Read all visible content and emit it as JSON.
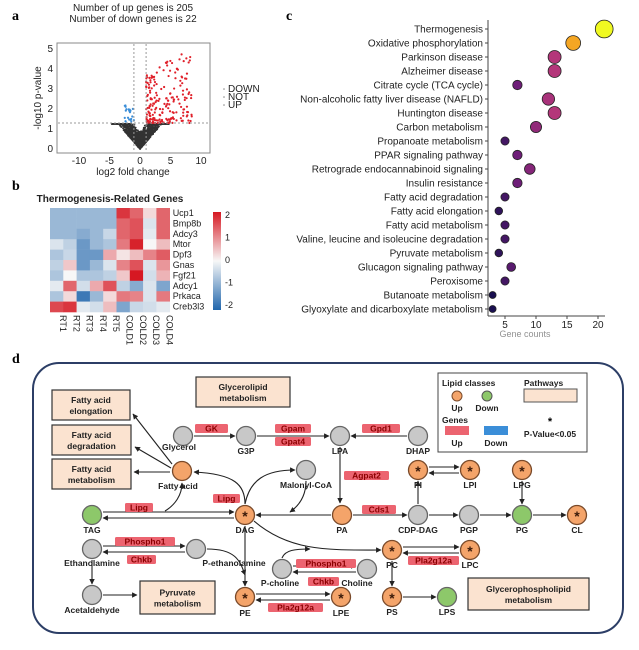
{
  "panel_labels": {
    "a": "a",
    "b": "b",
    "c": "c",
    "d": "d"
  },
  "colors": {
    "up_red": "#e0202a",
    "down_blue": "#3b8ed8",
    "not_gray": "#333333",
    "gene_box": "#ec6470",
    "pathway_box": "#fbe3d0",
    "node_up": "#f4a46a",
    "node_down": "#8dc86a",
    "node_none": "#c8c8c8",
    "frame": "#2c3e66"
  },
  "chart_data": [
    {
      "type": "scatter",
      "name": "volcano",
      "title_lines": [
        "Number of up genes is 205",
        "Number of down genes is 22"
      ],
      "xlabel": "log2 fold change",
      "ylabel": "-log10 p-value",
      "xticks": [
        -10,
        -5,
        0,
        5,
        10
      ],
      "yticks": [
        0,
        1,
        2,
        3,
        4,
        5
      ],
      "xlim": [
        -13,
        12
      ],
      "ylim": [
        -0.1,
        5.3
      ],
      "up_count": 205,
      "down_count": 22,
      "fc_threshold": 1,
      "p_threshold": 1.3,
      "legend": [
        "DOWN",
        "NOT",
        "UP"
      ],
      "legend_position": "right"
    },
    {
      "type": "heatmap",
      "name": "thermogenesis-heatmap",
      "title": "Thermogenesis-Related Genes",
      "rows": [
        "Ucp1",
        "Bmp8b",
        "Adcy3",
        "Mtor",
        "Dpf3",
        "Gnas",
        "Fgf21",
        "Adcy1",
        "Prkaca",
        "Creb3l3"
      ],
      "columns": [
        "RT1",
        "RT2",
        "RT3",
        "RT4",
        "RT5",
        "COLD1",
        "COLD2",
        "COLD3",
        "COLD4"
      ],
      "values": [
        [
          -1,
          -1,
          -1,
          -1,
          -1,
          2,
          1.5,
          0.3,
          1.5
        ],
        [
          -1,
          -1,
          -1,
          -1,
          -1,
          1.5,
          1.7,
          -0.3,
          1.5
        ],
        [
          -1,
          -1,
          -1.2,
          -1,
          -0.5,
          1.5,
          1.7,
          -0.2,
          1.5
        ],
        [
          -0.3,
          -0.6,
          -1.5,
          -1,
          -0.8,
          1.3,
          2.2,
          0,
          0.6
        ],
        [
          -0.8,
          -0.5,
          -1.5,
          -1.5,
          0.8,
          0.2,
          0.6,
          1.2,
          1.6
        ],
        [
          -0.6,
          0.5,
          -1.5,
          -1,
          -0.3,
          1.2,
          1.7,
          -0.3,
          1
        ],
        [
          -0.8,
          0,
          -0.8,
          -0.8,
          -0.6,
          0.5,
          2.3,
          -0.4,
          0.7
        ],
        [
          -0.2,
          1.5,
          -0.4,
          0.8,
          1.7,
          -0.6,
          -1.2,
          -0.3,
          -1.3
        ],
        [
          -0.8,
          0.3,
          -2,
          -1,
          0.3,
          1.3,
          1.2,
          -0.3,
          1.3
        ],
        [
          1.8,
          2,
          -0.2,
          -0.4,
          0.6,
          -1.3,
          -0.5,
          -0.4,
          -0.2
        ]
      ],
      "colorbar_ticks": [
        2,
        1,
        0,
        -1,
        -2
      ],
      "range": [
        -2.3,
        2.3
      ]
    },
    {
      "type": "scatter",
      "name": "kegg-dotplot",
      "pathways": [
        "Thermogenesis",
        "Oxidative phosphorylation",
        "Parkinson disease",
        "Alzheimer disease",
        "Citrate cycle (TCA cycle)",
        "Non-alcoholic fatty liver disease (NAFLD)",
        "Huntington disease",
        "Carbon metabolism",
        "Propanoate metabolism",
        "PPAR signaling pathway",
        "Retrograde endocannabinoid signaling",
        "Insulin resistance",
        "Fatty acid degradation",
        "Fatty acid elongation",
        "Fatty acid metabolism",
        "Valine, leucine and isoleucine degradation",
        "Pyruvate metabolism",
        "Glucagon signaling pathway",
        "Peroxisome",
        "Butanoate metabolism",
        "Glyoxylate and dicarboxylate metabolism"
      ],
      "gene_counts": [
        21,
        16,
        13,
        13,
        7,
        12,
        13,
        10,
        5,
        7,
        9,
        7,
        5,
        4,
        5,
        5,
        4,
        6,
        5,
        3,
        3
      ],
      "xticks": [
        5,
        10,
        15,
        20
      ],
      "xlim": [
        0,
        22
      ],
      "xlabel": "Gene counts"
    }
  ],
  "pathway_map": {
    "pathways": {
      "fa_elong": [
        "Fatty acid",
        "elongation"
      ],
      "fa_degr": [
        "Fatty acid",
        "degradation"
      ],
      "fa_met": [
        "Fatty acid",
        "metabolism"
      ],
      "glycerolipid": [
        "Glycerolipid",
        "metabolism"
      ],
      "pyruvate": [
        "Pyruvate",
        "metabolism"
      ],
      "glycerophospholipid": [
        "Glycerophospholipid",
        "metabolism"
      ]
    },
    "nodes": [
      {
        "id": "glycerol",
        "label": "Glycerol",
        "state": "none",
        "sig": false
      },
      {
        "id": "g3p",
        "label": "G3P",
        "state": "none",
        "sig": false
      },
      {
        "id": "lpa",
        "label": "LPA",
        "state": "none",
        "sig": false
      },
      {
        "id": "dhap",
        "label": "DHAP",
        "state": "none",
        "sig": false
      },
      {
        "id": "fa",
        "label": "Fatty acid",
        "state": "up",
        "sig": false
      },
      {
        "id": "malonyl",
        "label": "Malonyl-CoA",
        "state": "none",
        "sig": false
      },
      {
        "id": "tag",
        "label": "TAG",
        "state": "down",
        "sig": false
      },
      {
        "id": "dag",
        "label": "DAG",
        "state": "up",
        "sig": true
      },
      {
        "id": "pa",
        "label": "PA",
        "state": "up",
        "sig": false
      },
      {
        "id": "cdpdag",
        "label": "CDP-DAG",
        "state": "none",
        "sig": false
      },
      {
        "id": "pgp",
        "label": "PGP",
        "state": "none",
        "sig": false
      },
      {
        "id": "pg",
        "label": "PG",
        "state": "down",
        "sig": false
      },
      {
        "id": "cl",
        "label": "CL",
        "state": "up",
        "sig": true
      },
      {
        "id": "pi",
        "label": "PI",
        "state": "up",
        "sig": true
      },
      {
        "id": "lpi",
        "label": "LPI",
        "state": "up",
        "sig": true
      },
      {
        "id": "lpg",
        "label": "LPG",
        "state": "up",
        "sig": true
      },
      {
        "id": "etha",
        "label": "Ethanolamine",
        "state": "none",
        "sig": false
      },
      {
        "id": "peth",
        "label": "P-ethanolamine",
        "state": "none",
        "sig": false
      },
      {
        "id": "acet",
        "label": "Acetaldehyde",
        "state": "none",
        "sig": false
      },
      {
        "id": "pe",
        "label": "PE",
        "state": "up",
        "sig": true
      },
      {
        "id": "lpe",
        "label": "LPE",
        "state": "up",
        "sig": true
      },
      {
        "id": "pchol",
        "label": "P-choline",
        "state": "none",
        "sig": false
      },
      {
        "id": "choline",
        "label": "Choline",
        "state": "none",
        "sig": false
      },
      {
        "id": "pc",
        "label": "PC",
        "state": "up",
        "sig": true
      },
      {
        "id": "lpc",
        "label": "LPC",
        "state": "up",
        "sig": true
      },
      {
        "id": "ps",
        "label": "PS",
        "state": "up",
        "sig": true
      },
      {
        "id": "lps",
        "label": "LPS",
        "state": "down",
        "sig": false
      }
    ],
    "genes": [
      {
        "id": "gk",
        "label": "GK",
        "state": "up"
      },
      {
        "id": "gpam",
        "label": "Gpam",
        "state": "up"
      },
      {
        "id": "gpat4",
        "label": "Gpat4",
        "state": "up"
      },
      {
        "id": "gpd1",
        "label": "Gpd1",
        "state": "up"
      },
      {
        "id": "lipg1",
        "label": "Lipg",
        "state": "up"
      },
      {
        "id": "lipg2",
        "label": "Lipg",
        "state": "up"
      },
      {
        "id": "agpat2",
        "label": "Agpat2",
        "state": "up"
      },
      {
        "id": "cds1",
        "label": "Cds1",
        "state": "up"
      },
      {
        "id": "phospho1a",
        "label": "Phospho1",
        "state": "up"
      },
      {
        "id": "chkba",
        "label": "Chkb",
        "state": "up"
      },
      {
        "id": "phospho1b",
        "label": "Phospho1",
        "state": "up"
      },
      {
        "id": "chkbb",
        "label": "Chkb",
        "state": "up"
      },
      {
        "id": "pla2g12a_a",
        "label": "Pla2g12a",
        "state": "up"
      },
      {
        "id": "pla2g12a_b",
        "label": "Pla2g12a",
        "state": "up"
      }
    ],
    "legend": {
      "lipid_classes": "Lipid classes",
      "pathways": "Pathways",
      "genes": "Genes",
      "up": "Up",
      "down": "Down",
      "pvalue": "P-Value<0.05",
      "star": "*"
    }
  }
}
